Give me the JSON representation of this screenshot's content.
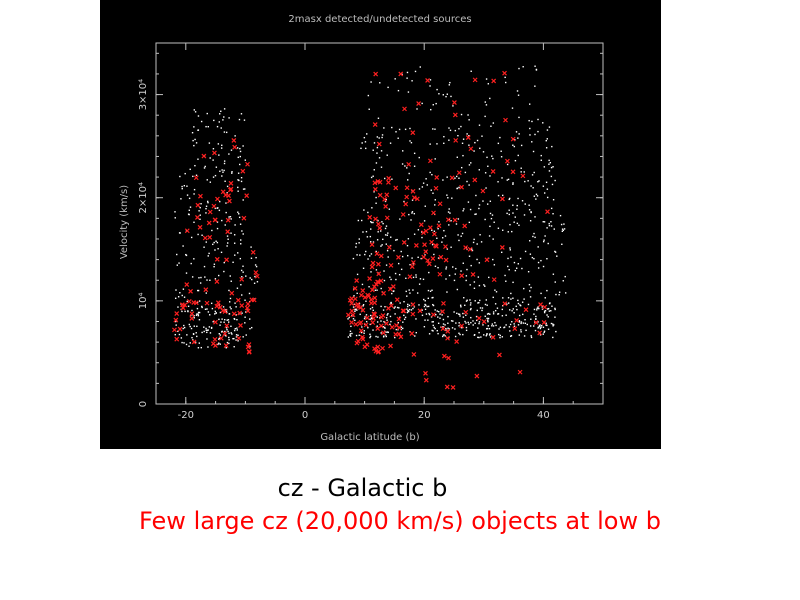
{
  "chart_data": {
    "type": "scatter",
    "title": "2masx detected/undetected sources",
    "xlabel": "Galactic latitude (b)",
    "ylabel": "Velocity (km/s)",
    "xlim": [
      -25,
      50
    ],
    "ylim": [
      0,
      35000
    ],
    "x_ticks": [
      {
        "value": -20,
        "label": "-20"
      },
      {
        "value": 0,
        "label": "0"
      },
      {
        "value": 20,
        "label": "20"
      },
      {
        "value": 40,
        "label": "40"
      }
    ],
    "y_ticks": [
      {
        "value": 0,
        "label": "0"
      },
      {
        "value": 10000,
        "label": "10⁴"
      },
      {
        "value": 20000,
        "label": "2×10⁴"
      },
      {
        "value": 30000,
        "label": "3×10⁴"
      }
    ],
    "grid": false,
    "series": [
      {
        "name": "detected",
        "color": "#ffffff",
        "marker": "dot",
        "clusters": [
          {
            "x_range": [
              -22,
              -9
            ],
            "y_range": [
              5500,
              9500
            ],
            "count": 150
          },
          {
            "x_range": [
              -22,
              -8
            ],
            "y_range": [
              9500,
              15500
            ],
            "count": 80
          },
          {
            "x_range": [
              -22,
              -10
            ],
            "y_range": [
              15500,
              24000
            ],
            "count": 110
          },
          {
            "x_range": [
              -19,
              -10
            ],
            "y_range": [
              24000,
              29000
            ],
            "count": 45
          },
          {
            "x_range": [
              7,
              42
            ],
            "y_range": [
              6500,
              10000
            ],
            "count": 380
          },
          {
            "x_range": [
              8,
              44
            ],
            "y_range": [
              10000,
              19000
            ],
            "count": 320
          },
          {
            "x_range": [
              9,
              42
            ],
            "y_range": [
              19000,
              27000
            ],
            "count": 200
          },
          {
            "x_range": [
              10,
              40
            ],
            "y_range": [
              27000,
              33000
            ],
            "count": 60
          }
        ]
      },
      {
        "name": "undetected",
        "color": "#ff2020",
        "marker": "x",
        "clusters": [
          {
            "x_range": [
              -22,
              -9
            ],
            "y_range": [
              5000,
              10000
            ],
            "count": 40
          },
          {
            "x_range": [
              -20,
              -8
            ],
            "y_range": [
              10000,
              26000
            ],
            "count": 45
          },
          {
            "x_range": [
              7,
              16
            ],
            "y_range": [
              5000,
              12000
            ],
            "count": 60
          },
          {
            "x_range": [
              8,
              42
            ],
            "y_range": [
              6000,
              10000
            ],
            "count": 40
          },
          {
            "x_range": [
              10,
              24
            ],
            "y_range": [
              12000,
              22000
            ],
            "count": 55
          },
          {
            "x_range": [
              16,
              42
            ],
            "y_range": [
              12000,
              24000
            ],
            "count": 30
          },
          {
            "x_range": [
              10,
              35
            ],
            "y_range": [
              24000,
              33000
            ],
            "count": 18
          },
          {
            "x_range": [
              15,
              42
            ],
            "y_range": [
              1500,
              5000
            ],
            "count": 10
          }
        ]
      }
    ]
  },
  "caption": {
    "title": "cz - Galactic b",
    "note": "Few large cz (20,000 km/s) objects at low b"
  }
}
